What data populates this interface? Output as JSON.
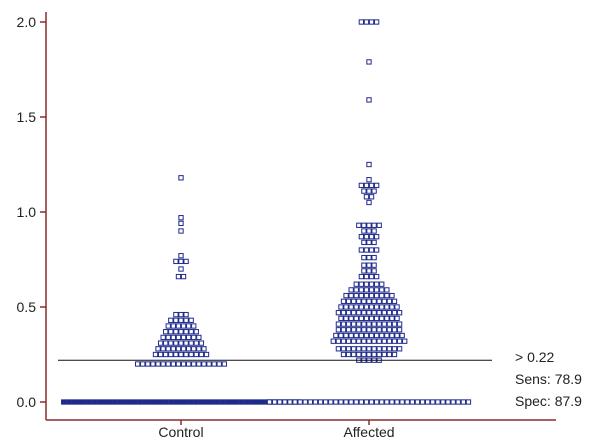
{
  "chart_data": {
    "type": "scatter",
    "subtype": "dot-plot",
    "title": "",
    "xlabel": "",
    "ylabel": "",
    "categories": [
      "Control",
      "Affected"
    ],
    "ylim": [
      0,
      2.0
    ],
    "yticks": [
      0.0,
      0.5,
      1.0,
      1.5,
      2.0
    ],
    "ytick_labels": [
      "0.0",
      "0.5",
      "1.0",
      "1.5",
      "2.0"
    ],
    "grid": false,
    "axis_color": "#8b2a2a",
    "marker_color": "#1f2a8a",
    "cutoff": 0.22,
    "annotation": [
      "> 0.22",
      "Sens: 78.9",
      "Spec: 87.9"
    ],
    "series": [
      {
        "category": "Control",
        "rows": [
          {
            "y": 0.0,
            "count": 47
          },
          {
            "y": 0.2,
            "count": 18
          },
          {
            "y": 0.25,
            "count": 11
          },
          {
            "y": 0.28,
            "count": 10
          },
          {
            "y": 0.31,
            "count": 9
          },
          {
            "y": 0.34,
            "count": 8
          },
          {
            "y": 0.37,
            "count": 7
          },
          {
            "y": 0.4,
            "count": 6
          },
          {
            "y": 0.43,
            "count": 5
          },
          {
            "y": 0.46,
            "count": 3
          },
          {
            "y": 0.66,
            "count": 2
          },
          {
            "y": 0.7,
            "count": 1
          },
          {
            "y": 0.74,
            "count": 3
          },
          {
            "y": 0.77,
            "count": 1
          },
          {
            "y": 0.9,
            "count": 1
          },
          {
            "y": 0.94,
            "count": 1
          },
          {
            "y": 0.97,
            "count": 1
          },
          {
            "y": 1.18,
            "count": 1
          }
        ]
      },
      {
        "category": "Affected",
        "rows": [
          {
            "y": 0.0,
            "count": 40
          },
          {
            "y": 0.22,
            "count": 5
          },
          {
            "y": 0.25,
            "count": 11
          },
          {
            "y": 0.28,
            "count": 13
          },
          {
            "y": 0.32,
            "count": 15
          },
          {
            "y": 0.35,
            "count": 14
          },
          {
            "y": 0.38,
            "count": 13
          },
          {
            "y": 0.41,
            "count": 13
          },
          {
            "y": 0.44,
            "count": 12
          },
          {
            "y": 0.47,
            "count": 13
          },
          {
            "y": 0.5,
            "count": 12
          },
          {
            "y": 0.53,
            "count": 11
          },
          {
            "y": 0.56,
            "count": 10
          },
          {
            "y": 0.59,
            "count": 8
          },
          {
            "y": 0.62,
            "count": 6
          },
          {
            "y": 0.66,
            "count": 4
          },
          {
            "y": 0.69,
            "count": 3
          },
          {
            "y": 0.72,
            "count": 3
          },
          {
            "y": 0.76,
            "count": 3
          },
          {
            "y": 0.8,
            "count": 4
          },
          {
            "y": 0.84,
            "count": 3
          },
          {
            "y": 0.87,
            "count": 4
          },
          {
            "y": 0.9,
            "count": 3
          },
          {
            "y": 0.93,
            "count": 5
          },
          {
            "y": 1.05,
            "count": 1
          },
          {
            "y": 1.08,
            "count": 2
          },
          {
            "y": 1.11,
            "count": 3
          },
          {
            "y": 1.14,
            "count": 4
          },
          {
            "y": 1.17,
            "count": 1
          },
          {
            "y": 1.25,
            "count": 1
          },
          {
            "y": 1.59,
            "count": 1
          },
          {
            "y": 1.79,
            "count": 1
          },
          {
            "y": 2.0,
            "count": 4
          }
        ]
      }
    ]
  }
}
